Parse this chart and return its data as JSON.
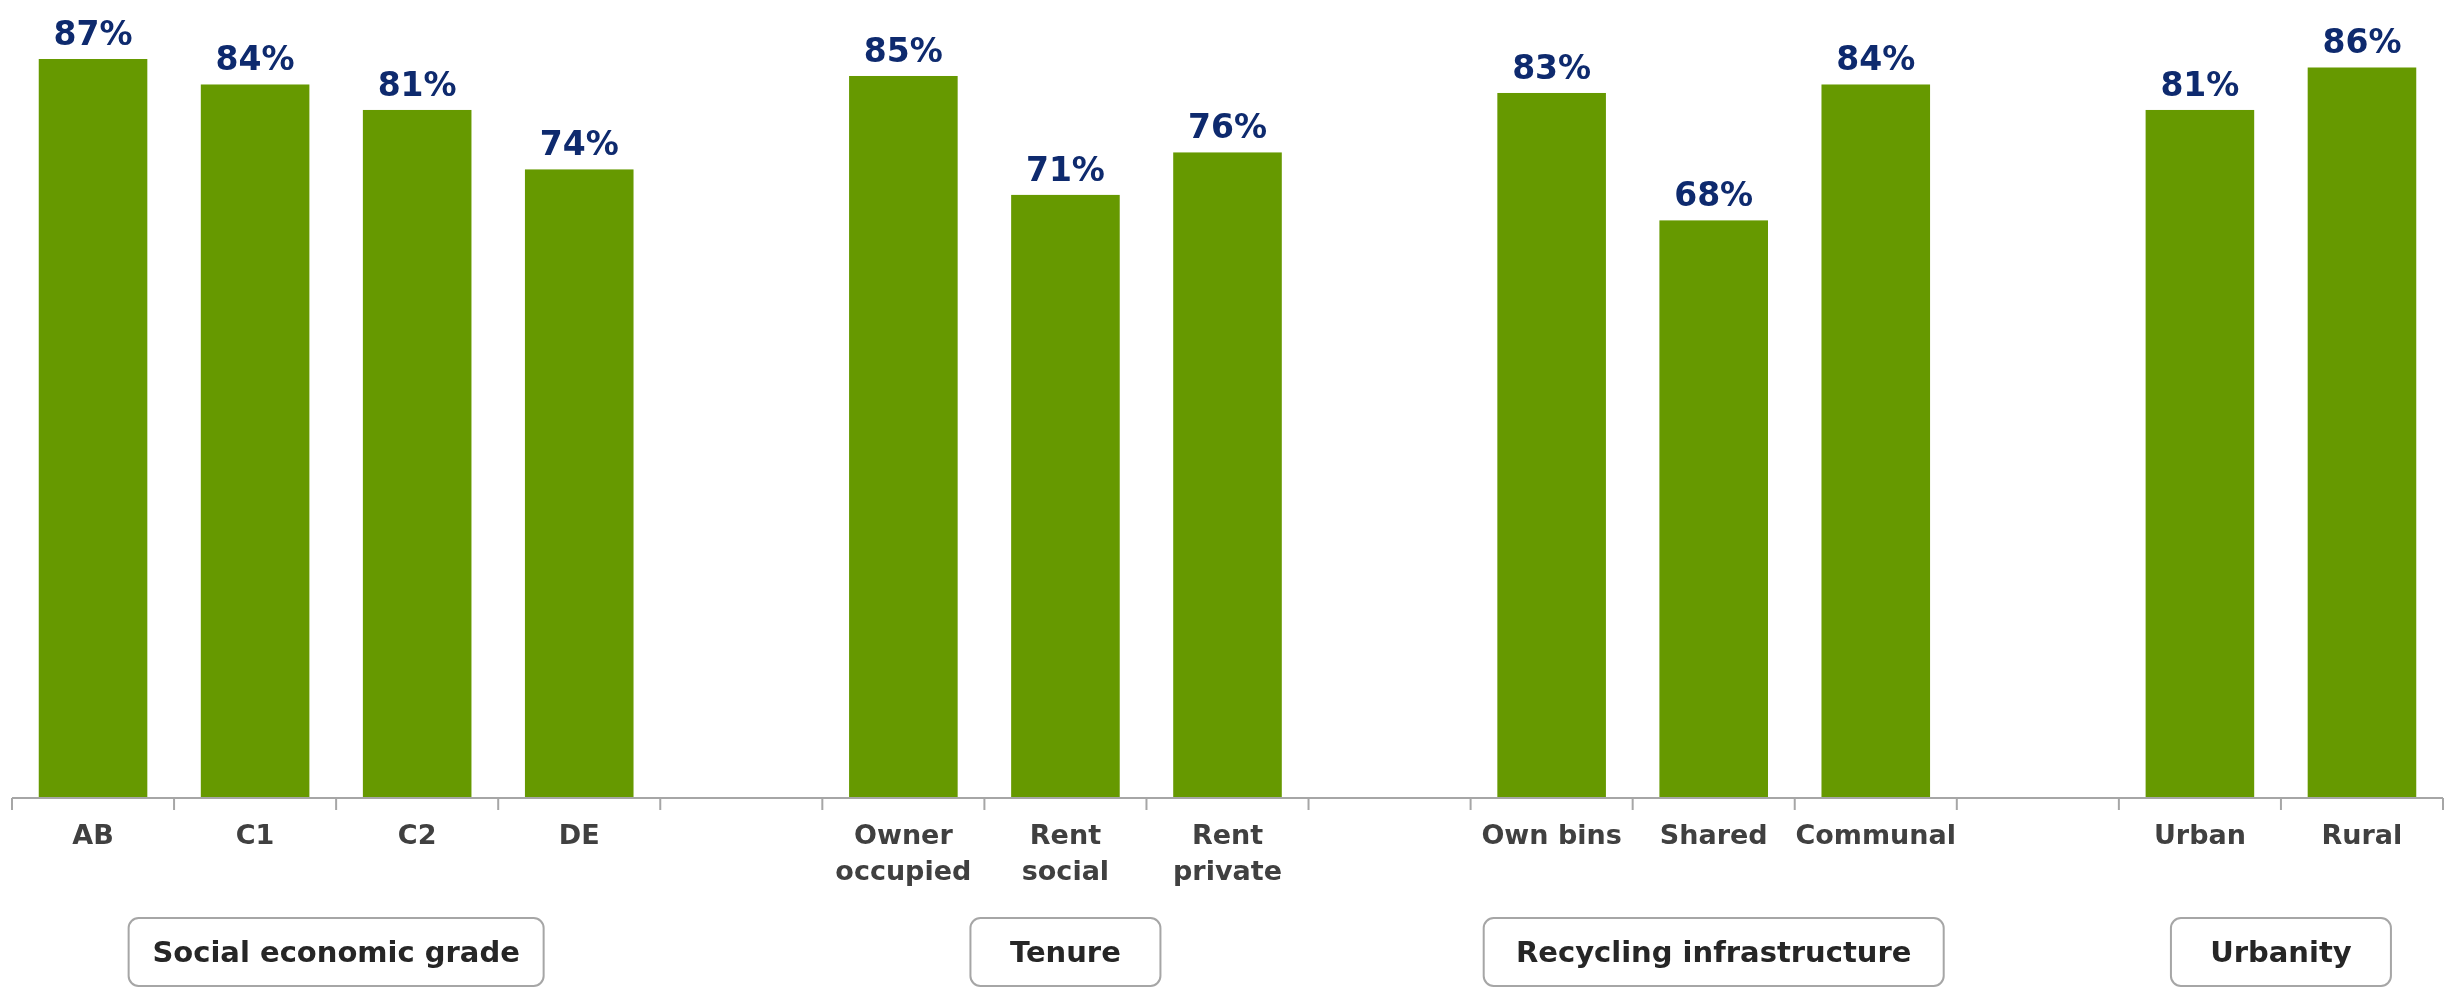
{
  "chart_data": {
    "type": "bar",
    "categories": [
      "AB",
      "C1",
      "C2",
      "DE",
      null,
      "Owner occupied",
      "Rent social",
      "Rent private",
      null,
      "Own bins",
      "Shared",
      "Communal",
      null,
      "Urban",
      "Rural"
    ],
    "values": [
      87,
      84,
      81,
      74,
      null,
      85,
      71,
      76,
      null,
      83,
      68,
      84,
      null,
      81,
      86
    ],
    "value_labels": [
      "87%",
      "84%",
      "81%",
      "74%",
      null,
      "85%",
      "71%",
      "76%",
      null,
      "83%",
      "68%",
      "84%",
      null,
      "81%",
      "86%"
    ],
    "color": "#669900",
    "annotations": [
      "Social economic grade",
      "Tenure",
      "Recycling infrastructure",
      "Urbanity"
    ]
  }
}
